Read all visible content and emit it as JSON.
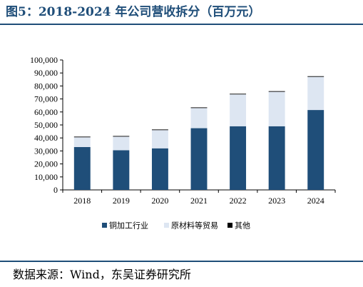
{
  "figure": {
    "title": "图5：2018-2024 年公司营收拆分（百万元）",
    "source": "数据来源：Wind，东吴证券研究所"
  },
  "chart_data": {
    "type": "bar",
    "stacked": true,
    "categories": [
      "2018",
      "2019",
      "2020",
      "2021",
      "2022",
      "2023",
      "2024"
    ],
    "series": [
      {
        "name": "铜加工行业",
        "color": "#1f4e79",
        "values": [
          33000,
          30500,
          32000,
          47500,
          49000,
          49000,
          61500
        ]
      },
      {
        "name": "原材料等贸易",
        "color": "#dde6f2",
        "values": [
          7500,
          10500,
          14000,
          15500,
          24500,
          26500,
          25500
        ]
      },
      {
        "name": "其他",
        "color": "#000000",
        "values": [
          500,
          500,
          500,
          500,
          500,
          500,
          500
        ]
      }
    ],
    "ylim": [
      0,
      100000
    ],
    "yticks": [
      "0",
      "10,000",
      "20,000",
      "30,000",
      "40,000",
      "50,000",
      "60,000",
      "70,000",
      "80,000",
      "90,000",
      "100,000"
    ],
    "legend": "bottom",
    "grid": false
  }
}
